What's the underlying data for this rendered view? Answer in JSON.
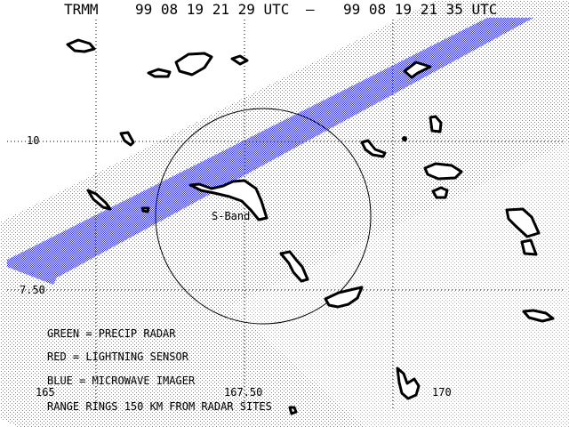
{
  "header": {
    "satellite": "TRMM",
    "start_time": "99 08 19 21 29 UTC",
    "separator": "–",
    "end_time": "99 08 19 21 35 UTC"
  },
  "grid": {
    "lat_labels": [
      "10",
      "7.50"
    ],
    "lon_labels": [
      "165",
      "167.50",
      "170"
    ]
  },
  "radar_site": {
    "label": "S-Band"
  },
  "legend": {
    "green": "GREEN = PRECIP RADAR",
    "red": "RED = LIGHTNING SENSOR",
    "blue": "BLUE = MICROWAVE IMAGER",
    "rings": "RANGE RINGS 150 KM FROM RADAR SITES"
  },
  "colors": {
    "precip_radar": "#7fd67f",
    "lightning_sensor": "#ee5555",
    "microwave_imager": "#2a2ad6"
  }
}
